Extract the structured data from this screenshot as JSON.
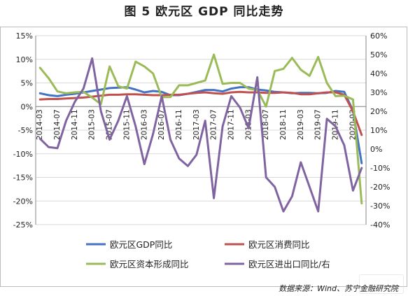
{
  "title": "图 5  欧元区 GDP 同比走势",
  "source": "数据来源：Wind、苏宁金融研究院",
  "chart_data": {
    "type": "line",
    "x": [
      "2014-03",
      "2014-05",
      "2014-07",
      "2014-09",
      "2014-11",
      "2015-01",
      "2015-03",
      "2015-05",
      "2015-07",
      "2015-09",
      "2015-11",
      "2016-01",
      "2016-03",
      "2016-05",
      "2016-07",
      "2016-09",
      "2016-11",
      "2017-01",
      "2017-03",
      "2017-05",
      "2017-07",
      "2017-09",
      "2017-11",
      "2018-01",
      "2018-03",
      "2018-05",
      "2018-07",
      "2018-09",
      "2018-11",
      "2019-01",
      "2019-03",
      "2019-05",
      "2019-07",
      "2019-09",
      "2019-11",
      "2020-01",
      "2020-03",
      "2020-05"
    ],
    "tick_labels": [
      "2014-03",
      "2014-07",
      "2014-11",
      "2015-03",
      "2015-07",
      "2015-11",
      "2016-03",
      "2016-07",
      "2016-11",
      "2017-03",
      "2017-07",
      "2017-11",
      "2018-03",
      "2018-07",
      "2018-11",
      "2019-03",
      "2019-07",
      "2019-11",
      "2020-03"
    ],
    "y_left": {
      "ticks": [
        "15%",
        "10%",
        "5%",
        "0%",
        "-5%",
        "-10%",
        "-15%",
        "-20%",
        "-25%"
      ],
      "min": -25,
      "max": 15,
      "step": 5
    },
    "y_right": {
      "ticks": [
        "60%",
        "50%",
        "40%",
        "30%",
        "20%",
        "10%",
        "0%",
        "-10%",
        "-20%",
        "-30%",
        "-40%"
      ],
      "min": -40,
      "max": 60,
      "step": 10
    },
    "grid": true,
    "legend_position": "bottom",
    "series": [
      {
        "name": "欧元区GDP同比",
        "axis": "left",
        "color": "#4472C4",
        "values": [
          2.8,
          2.4,
          2.2,
          2.5,
          2.7,
          3.0,
          3.3,
          3.6,
          3.9,
          4.0,
          4.1,
          3.6,
          3.0,
          3.3,
          3.1,
          2.4,
          2.4,
          2.7,
          3.1,
          3.5,
          3.5,
          3.2,
          3.8,
          4.1,
          4.1,
          3.6,
          3.4,
          3.1,
          3.0,
          2.8,
          2.9,
          2.9,
          2.8,
          2.9,
          3.3,
          3.1,
          -0.9,
          -12.0
        ]
      },
      {
        "name": "欧元区消费同比",
        "axis": "left",
        "color": "#C0504D",
        "values": [
          1.5,
          1.6,
          1.6,
          1.7,
          1.8,
          1.9,
          2.1,
          2.3,
          2.5,
          2.5,
          2.6,
          2.6,
          2.5,
          2.4,
          2.4,
          2.5,
          2.5,
          2.7,
          2.9,
          3.0,
          2.8,
          2.7,
          3.0,
          3.1,
          3.0,
          3.0,
          2.9,
          2.9,
          3.0,
          2.9,
          2.6,
          2.6,
          2.8,
          3.0,
          3.0,
          2.5,
          -1.0,
          -6.0
        ]
      },
      {
        "name": "欧元区资本形成同比",
        "axis": "left",
        "color": "#9BBB59",
        "values": [
          8.2,
          6.0,
          3.2,
          2.8,
          3.0,
          3.1,
          1.9,
          0.5,
          8.5,
          4.3,
          3.8,
          9.5,
          8.5,
          7.0,
          2.0,
          2.0,
          4.5,
          4.5,
          5.0,
          5.5,
          11.0,
          4.8,
          5.0,
          5.0,
          3.8,
          3.5,
          0.0,
          7.5,
          8.0,
          10.3,
          7.8,
          6.5,
          10.5,
          5.0,
          2.2,
          2.3,
          1.5,
          -20.5
        ]
      },
      {
        "name": "欧元区进出口同比/右",
        "axis": "right",
        "color": "#8064A2",
        "values": [
          5.5,
          1.0,
          0.5,
          15.0,
          25.0,
          32.0,
          48.0,
          20.0,
          5.0,
          15.0,
          28.0,
          12.0,
          -8.0,
          8.0,
          28.0,
          5.0,
          -5.0,
          -9.0,
          -3.0,
          15.0,
          -26.0,
          12.0,
          28.0,
          22.0,
          11.0,
          38.0,
          -15.0,
          -20.0,
          -33.0,
          -25.0,
          -7.0,
          -20.0,
          -33.0,
          16.0,
          12.0,
          2.0,
          -22.0,
          -10.0
        ]
      }
    ]
  }
}
